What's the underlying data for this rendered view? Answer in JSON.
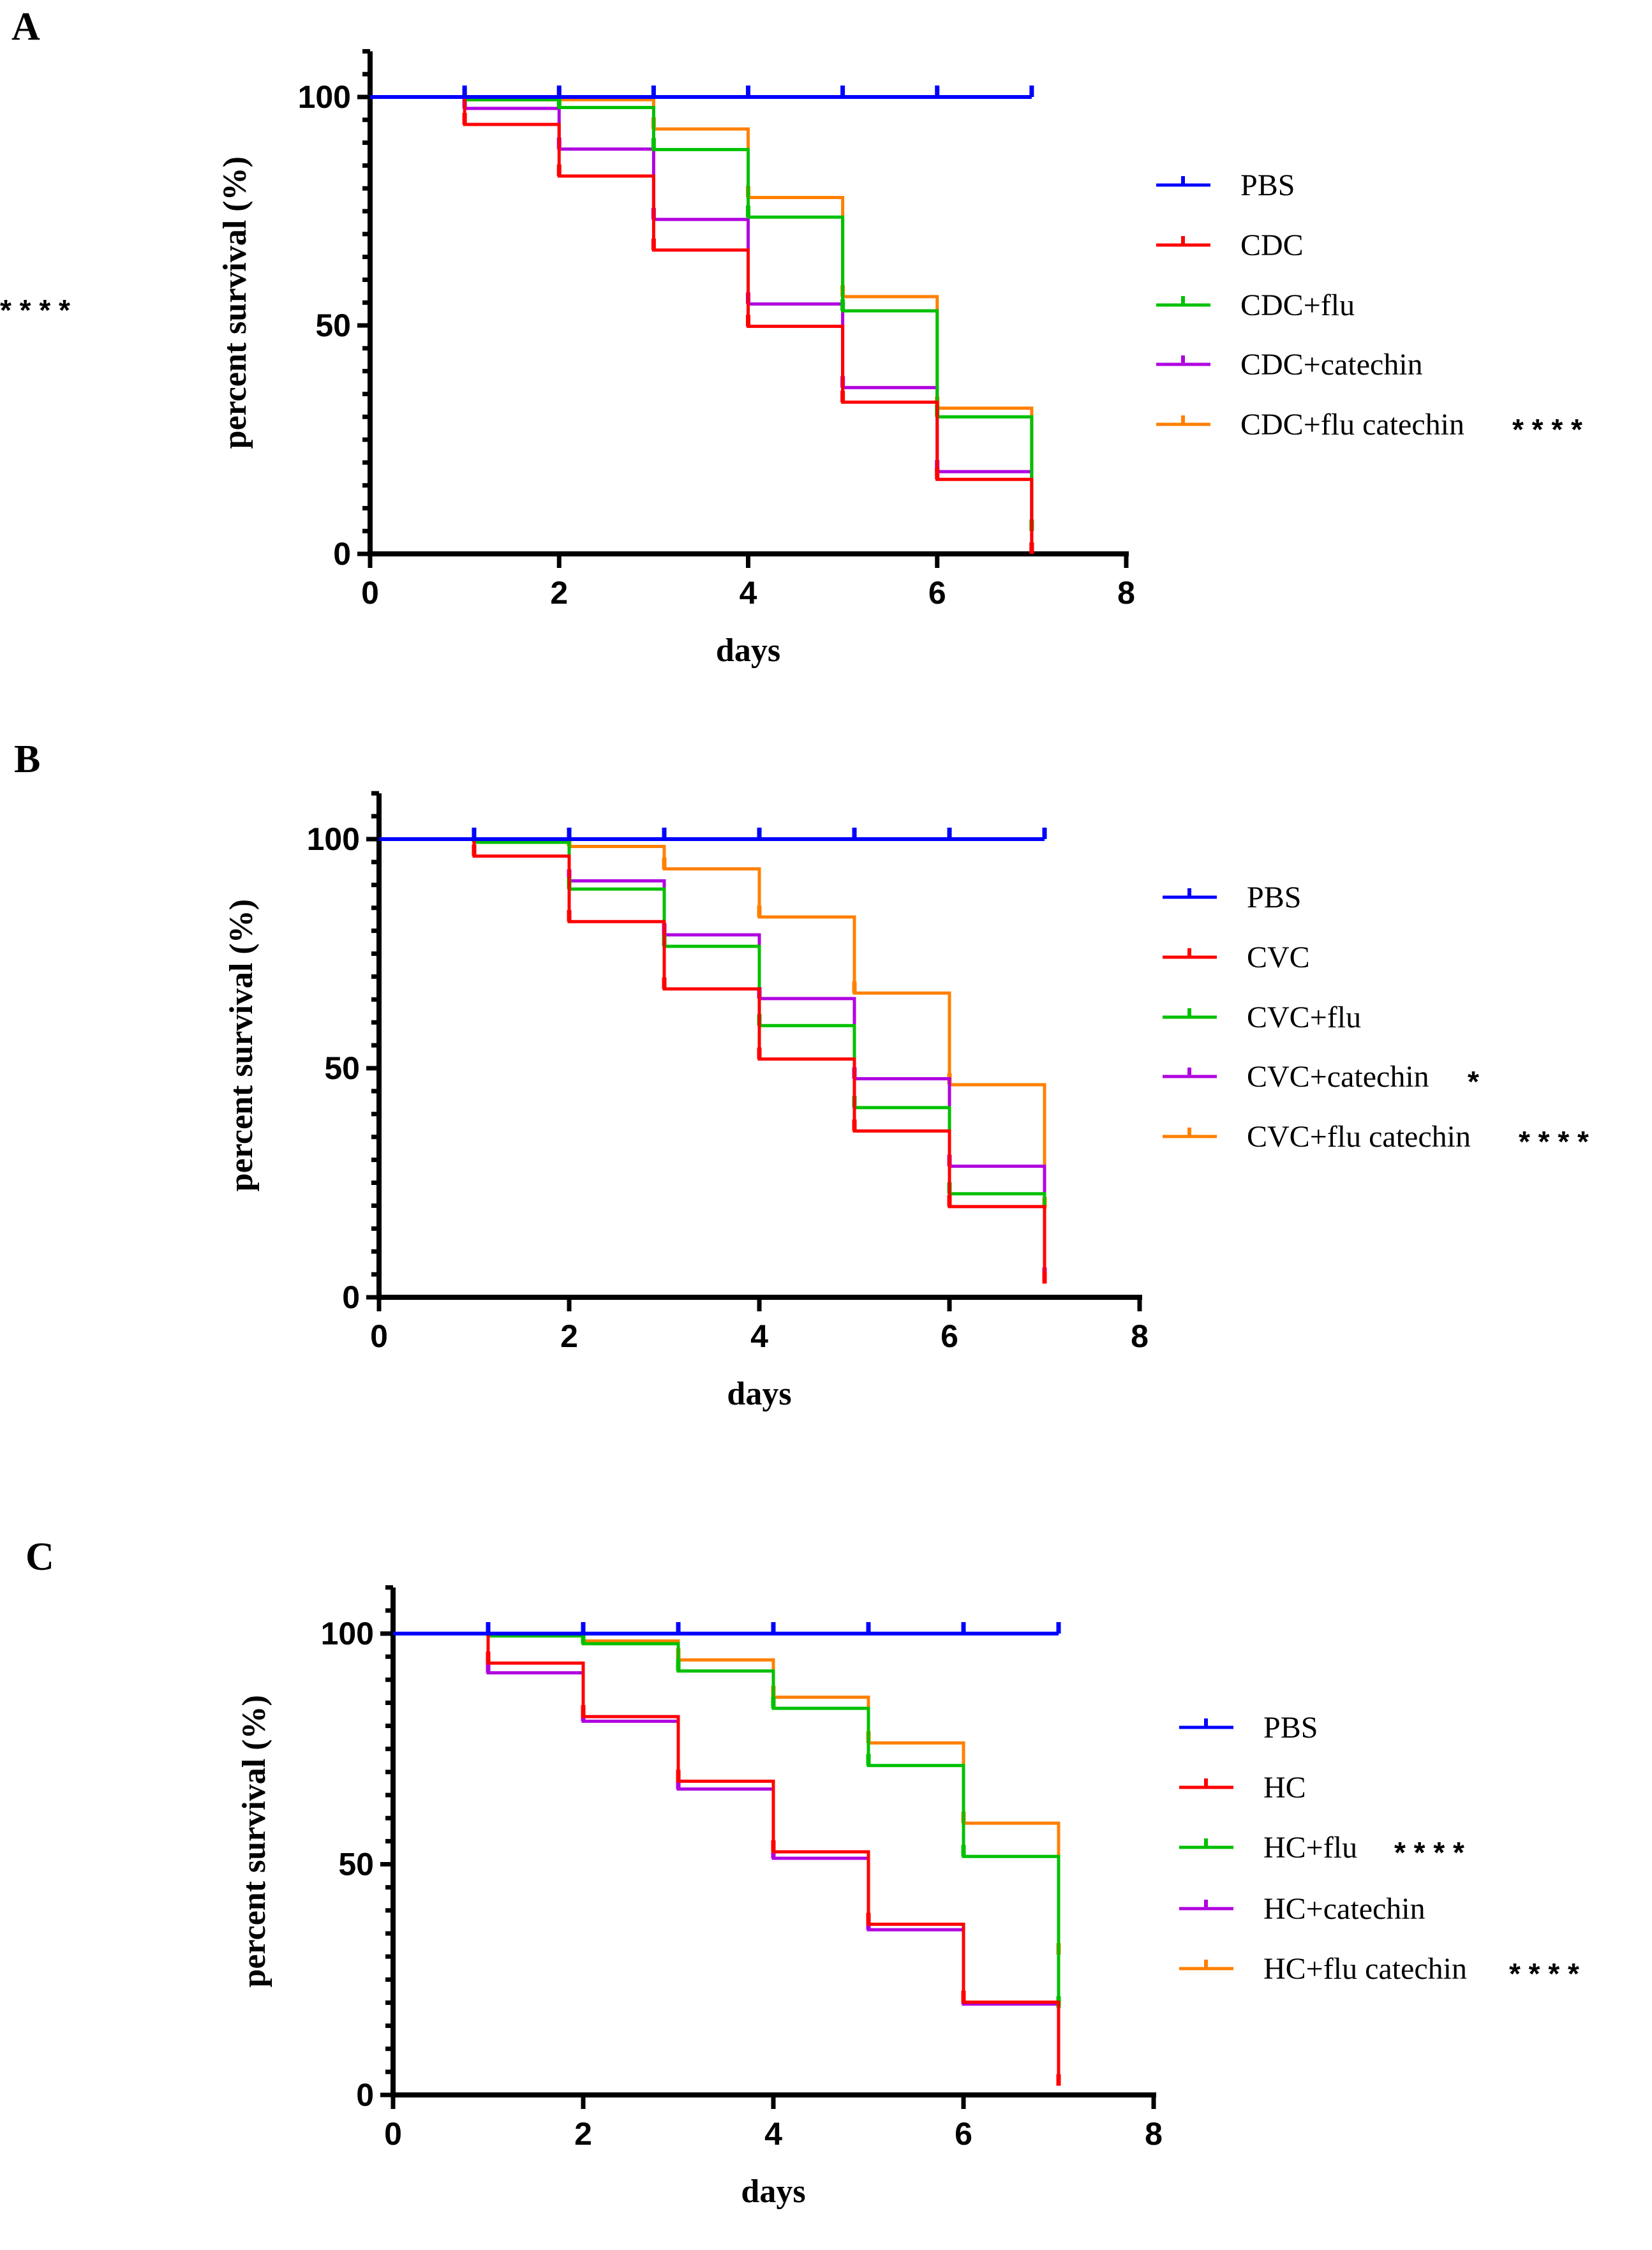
{
  "colors": {
    "PBS": "#0000ff",
    "base": "#ff0000",
    "flu": "#00c000",
    "catechin": "#b000e0",
    "flu_catechin": "#ff8000"
  },
  "chart_data": [
    {
      "panel": "A",
      "type": "line",
      "style": "kaplan-meier step",
      "xlabel": "days",
      "ylabel": "percent survival (%)",
      "xlim": [
        0,
        8
      ],
      "ylim": [
        0,
        110
      ],
      "xticks": [
        0,
        2,
        4,
        6,
        8
      ],
      "yticks": [
        0,
        50,
        100
      ],
      "legend_position": "right",
      "x": [
        0,
        1,
        2,
        3,
        4,
        5,
        6,
        7
      ],
      "series": [
        {
          "name": "PBS",
          "color_key": "PBS",
          "significance": "",
          "values": [
            100,
            100,
            100,
            100,
            100,
            100,
            100,
            100
          ]
        },
        {
          "name": "CDC",
          "color_key": "base",
          "significance": "",
          "values": [
            100,
            94,
            82.7,
            66.5,
            49.8,
            33.2,
            16.3,
            0
          ]
        },
        {
          "name": "CDC+flu",
          "color_key": "flu",
          "significance": "* * * *",
          "values": [
            100,
            99.4,
            97.7,
            88.5,
            73.7,
            53.2,
            30,
            5
          ]
        },
        {
          "name": "CDC+catechin",
          "color_key": "catechin",
          "significance": "",
          "values": [
            100,
            97.5,
            88.6,
            73.2,
            54.7,
            36.4,
            18,
            0
          ]
        },
        {
          "name": "CDC+flu catechin",
          "color_key": "flu_catechin",
          "significance": "* * * *",
          "values": [
            100,
            99.4,
            99.4,
            93,
            78,
            56.3,
            31.9,
            5
          ]
        }
      ]
    },
    {
      "panel": "B",
      "type": "line",
      "style": "kaplan-meier step",
      "xlabel": "days",
      "ylabel": "percent survival (%)",
      "xlim": [
        0,
        8
      ],
      "ylim": [
        0,
        110
      ],
      "xticks": [
        0,
        2,
        4,
        6,
        8
      ],
      "yticks": [
        0,
        50,
        100
      ],
      "legend_position": "right",
      "x": [
        0,
        1,
        2,
        3,
        4,
        5,
        6,
        7
      ],
      "series": [
        {
          "name": "PBS",
          "color_key": "PBS",
          "significance": "",
          "values": [
            100,
            100,
            100,
            100,
            100,
            100,
            100,
            100
          ]
        },
        {
          "name": "CVC",
          "color_key": "base",
          "significance": "",
          "values": [
            100,
            96.3,
            82,
            67.3,
            52,
            36.3,
            19.8,
            3
          ]
        },
        {
          "name": "CVC+flu",
          "color_key": "flu",
          "significance": "",
          "values": [
            100,
            99.3,
            89.1,
            76.6,
            59.3,
            41.4,
            22.6,
            3
          ]
        },
        {
          "name": "CVC+catechin",
          "color_key": "catechin",
          "significance": "*",
          "values": [
            100,
            99.3,
            90.9,
            79.1,
            65.2,
            47.7,
            28.6,
            4
          ]
        },
        {
          "name": "CVC+flu catechin",
          "color_key": "flu_catechin",
          "significance": "* * * *",
          "values": [
            100,
            99.3,
            98.4,
            93.5,
            83,
            66.4,
            46.4,
            19.4
          ]
        }
      ]
    },
    {
      "panel": "C",
      "type": "line",
      "style": "kaplan-meier step",
      "xlabel": "days",
      "ylabel": "percent survival (%)",
      "xlim": [
        0,
        8
      ],
      "ylim": [
        0,
        110
      ],
      "xticks": [
        0,
        2,
        4,
        6,
        8
      ],
      "yticks": [
        0,
        50,
        100
      ],
      "legend_position": "right",
      "x": [
        0,
        1,
        2,
        3,
        4,
        5,
        6,
        7
      ],
      "series": [
        {
          "name": "PBS",
          "color_key": "PBS",
          "significance": "",
          "values": [
            100,
            100,
            100,
            100,
            100,
            100,
            100,
            100
          ]
        },
        {
          "name": "HC",
          "color_key": "base",
          "significance": "",
          "values": [
            100,
            93.6,
            82,
            68,
            52.7,
            37,
            20.1,
            2
          ]
        },
        {
          "name": "HC+flu",
          "color_key": "flu",
          "significance": "* * * *",
          "values": [
            100,
            99.5,
            97.8,
            91.9,
            83.8,
            71.4,
            51.7,
            18.9
          ]
        },
        {
          "name": "HC+catechin",
          "color_key": "catechin",
          "significance": "",
          "values": [
            100,
            91.5,
            81,
            66.3,
            51.3,
            35.8,
            19.7,
            2
          ]
        },
        {
          "name": "HC+flu catechin",
          "color_key": "flu_catechin",
          "significance": "* * * *",
          "values": [
            100,
            99.5,
            98.4,
            94.3,
            86.2,
            76.3,
            58.9,
            30.4
          ]
        }
      ]
    }
  ]
}
